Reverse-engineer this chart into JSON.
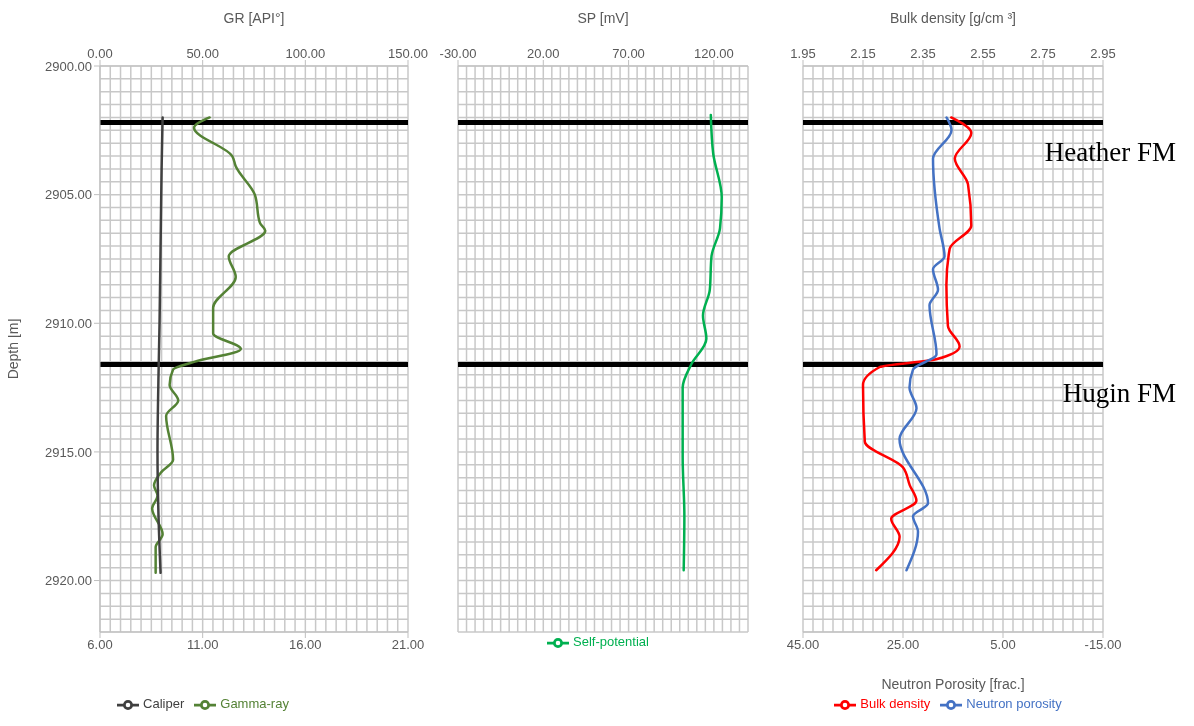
{
  "chart_data": [
    {
      "type": "line",
      "xlabel": null,
      "x2label": "GR [API°]",
      "ylabel": "Depth [m]",
      "xlim": [
        6,
        21
      ],
      "xticks": [
        {
          "value": 6,
          "label": "6.00"
        },
        {
          "value": 11,
          "label": "11.00"
        },
        {
          "value": 16,
          "label": "16.00"
        },
        {
          "value": 21,
          "label": "21.00"
        }
      ],
      "x2lim": [
        0,
        150
      ],
      "x2ticks": [
        {
          "value": 0,
          "label": "0.00"
        },
        {
          "value": 50,
          "label": "50.00"
        },
        {
          "value": 100,
          "label": "100.00"
        },
        {
          "value": 150,
          "label": "150.00"
        }
      ],
      "ylim": [
        2922,
        2900
      ],
      "yticks": [
        {
          "value": 2900,
          "label": "2900.00"
        },
        {
          "value": 2905,
          "label": "2905.00"
        },
        {
          "value": 2910,
          "label": "2910.00"
        },
        {
          "value": 2915,
          "label": "2915.00"
        },
        {
          "value": 2920,
          "label": "2920.00"
        }
      ],
      "series": [
        {
          "name": "Gamma-ray",
          "color": "#548235",
          "axis": "x2",
          "x": [
            53.4,
            45.8,
            64.4,
            66.1,
            75.4,
            77.9,
            80.5,
            62.7,
            66.1,
            55.1,
            55.1,
            68.6,
            45.8,
            35.6,
            33.9,
            38.1,
            32.2,
            35.6,
            29.7,
            26.3,
            28.0,
            25.4,
            30.5,
            27.1,
            27.1
          ],
          "values": [
            2902.0,
            2902.4,
            2903.5,
            2903.9,
            2905.0,
            2906.1,
            2906.4,
            2907.4,
            2908.2,
            2909.4,
            2910.4,
            2911.0,
            2911.5,
            2911.8,
            2912.4,
            2913.0,
            2913.6,
            2915.3,
            2915.8,
            2916.3,
            2916.7,
            2917.2,
            2918.2,
            2918.7,
            2919.7
          ]
        },
        {
          "name": "Caliper",
          "color": "#404040",
          "x": [
            9.05,
            9.0,
            8.95,
            8.9,
            8.85,
            8.8,
            8.85,
            8.95
          ],
          "values": [
            2902.0,
            2904.0,
            2907.0,
            2910.0,
            2912.0,
            2915.0,
            2917.5,
            2919.7
          ]
        }
      ],
      "ref_lines": [
        {
          "axis": "y",
          "value": 2902.2,
          "label": null,
          "color": "#000000"
        },
        {
          "axis": "y",
          "value": 2911.6,
          "label": null,
          "color": "#000000"
        }
      ],
      "grid": true,
      "legend": "bottom",
      "marker": "none",
      "line_style": "solid"
    },
    {
      "type": "line",
      "xlabel": "SP [mV]",
      "xlim": [
        -30,
        140
      ],
      "xticks": [
        {
          "value": -30,
          "label": "-30.00"
        },
        {
          "value": 20,
          "label": "20.00"
        },
        {
          "value": 70,
          "label": "70.00"
        },
        {
          "value": 120,
          "label": "120.00"
        }
      ],
      "ylim": [
        2922,
        2900
      ],
      "series": [
        {
          "name": "Self-potential",
          "color": "#00b050",
          "x": [
            118.2,
            119.6,
            124.6,
            123.6,
            118.6,
            117.6,
            113.6,
            115.6,
            106.7,
            101.7,
            101.7,
            102.7,
            102.3
          ],
          "values": [
            2901.9,
            2903.4,
            2905.1,
            2906.3,
            2907.4,
            2908.7,
            2909.7,
            2910.6,
            2911.6,
            2912.5,
            2915.2,
            2917.5,
            2919.6
          ]
        }
      ],
      "ref_lines": [
        {
          "axis": "y",
          "value": 2902.2,
          "label": null,
          "color": "#000000"
        },
        {
          "axis": "y",
          "value": 2911.6,
          "label": null,
          "color": "#000000"
        }
      ],
      "grid": true,
      "legend": "bottom",
      "marker": "none",
      "line_style": "solid",
      "tick_labels": "x"
    },
    {
      "type": "line",
      "xlabel": "Neutron Porosity [frac.]",
      "x2label": "Bulk density [g/cm ³]",
      "xlim": [
        45,
        -15
      ],
      "xticks": [
        {
          "value": 45,
          "label": "45.00"
        },
        {
          "value": 25,
          "label": "25.00"
        },
        {
          "value": 5,
          "label": "5.00"
        },
        {
          "value": -15,
          "label": "-15.00"
        }
      ],
      "x2lim": [
        1.95,
        2.95
      ],
      "x2ticks": [
        1.95,
        2.15,
        2.35,
        2.55,
        2.75,
        2.95
      ],
      "ylim": [
        2922,
        2900
      ],
      "series": [
        {
          "name": "Bulk density",
          "color": "#ff0000",
          "axis": "x2",
          "x": [
            2.444,
            2.511,
            2.456,
            2.5,
            2.511,
            2.439,
            2.428,
            2.433,
            2.472,
            2.394,
            2.206,
            2.15,
            2.156,
            2.283,
            2.306,
            2.328,
            2.244,
            2.272,
            2.194
          ],
          "values": [
            2902.0,
            2902.6,
            2903.6,
            2904.6,
            2906.2,
            2907.1,
            2908.5,
            2910.1,
            2910.9,
            2911.4,
            2911.7,
            2912.4,
            2914.6,
            2915.6,
            2916.3,
            2916.9,
            2917.6,
            2918.3,
            2919.6
          ]
        },
        {
          "name": "Neutron porosity",
          "color": "#4472c4",
          "x": [
            16.3,
            15.3,
            19.0,
            17.7,
            16.7,
            19.0,
            18.0,
            19.7,
            18.3,
            23.0,
            23.7,
            22.3,
            25.7,
            20.0,
            23.0,
            22.0,
            24.3
          ],
          "values": [
            2902.0,
            2902.5,
            2903.6,
            2906.3,
            2907.4,
            2907.9,
            2908.7,
            2909.3,
            2911.2,
            2911.8,
            2912.5,
            2913.3,
            2914.5,
            2917.0,
            2917.5,
            2918.1,
            2919.6
          ]
        }
      ],
      "ref_lines": [
        {
          "axis": "y",
          "value": 2902.2,
          "label": "Heather FM",
          "color": "#000000"
        },
        {
          "axis": "y",
          "value": 2911.6,
          "label": "Hugin FM",
          "color": "#000000"
        }
      ],
      "grid": true,
      "legend": "bottom",
      "marker": "none",
      "line_style": "solid",
      "tick_labels": "x"
    }
  ]
}
